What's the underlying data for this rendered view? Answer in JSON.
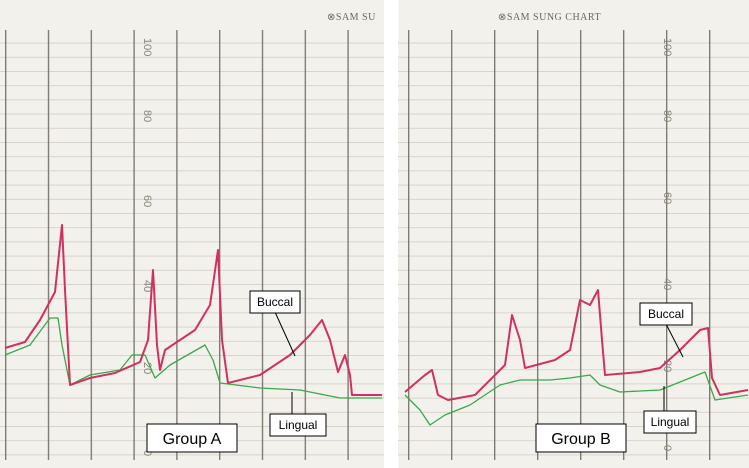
{
  "panels": [
    {
      "brand": "⊗SAM SU",
      "scale": [
        "100",
        "80",
        "60",
        "40",
        "20",
        "0"
      ],
      "buccal": "Buccal",
      "lingual": "Lingual",
      "group": "Group A"
    },
    {
      "brand": "⊗SAM SUNG CHART",
      "scale": [
        "100",
        "80",
        "60",
        "40",
        "20",
        "0"
      ],
      "buccal": "Buccal",
      "lingual": "Lingual",
      "group": "Group B"
    }
  ]
}
